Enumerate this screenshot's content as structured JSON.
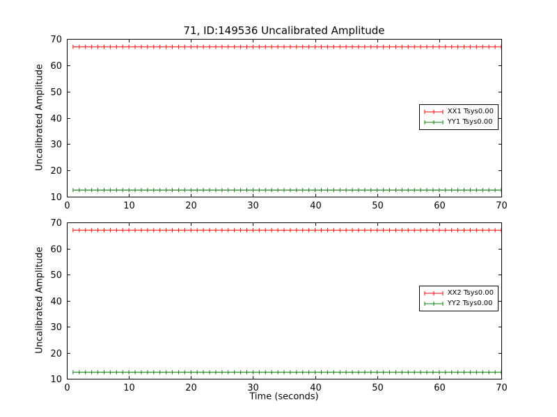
{
  "figure": {
    "title": "71, ID:149536 Uncalibrated Amplitude",
    "background_color": "#ffffff",
    "axes_color": "#000000"
  },
  "chart_data": [
    {
      "type": "line",
      "subplot": "top",
      "title": "",
      "xlabel": "",
      "ylabel": "Uncalibrated Amplitude",
      "xlim": [
        0,
        70
      ],
      "ylim": [
        10,
        70
      ],
      "xticks": [
        0,
        10,
        20,
        30,
        40,
        50,
        60,
        70
      ],
      "yticks": [
        10,
        20,
        30,
        40,
        50,
        60,
        70
      ],
      "grid": false,
      "legend_position": "center right",
      "series": [
        {
          "name": "XX1 Tsys0.00",
          "color": "#ff0000",
          "marker": "errorbar-plus",
          "x_start": 1,
          "x_end": 70,
          "x_step": 1,
          "n_points": 70,
          "y_constant": 67.0
        },
        {
          "name": "YY1 Tsys0.00",
          "color": "#008000",
          "marker": "errorbar-plus",
          "x_start": 1,
          "x_end": 70,
          "x_step": 1,
          "n_points": 70,
          "y_constant": 12.5
        }
      ]
    },
    {
      "type": "line",
      "subplot": "bottom",
      "title": "",
      "xlabel": "Time (seconds)",
      "ylabel": "Uncalibrated Amplitude",
      "xlim": [
        0,
        70
      ],
      "ylim": [
        10,
        70
      ],
      "xticks": [
        0,
        10,
        20,
        30,
        40,
        50,
        60,
        70
      ],
      "yticks": [
        10,
        20,
        30,
        40,
        50,
        60,
        70
      ],
      "grid": false,
      "legend_position": "center right",
      "series": [
        {
          "name": "XX2 Tsys0.00",
          "color": "#ff0000",
          "marker": "errorbar-plus",
          "x_start": 1,
          "x_end": 70,
          "x_step": 1,
          "n_points": 70,
          "y_constant": 67.0
        },
        {
          "name": "YY2 Tsys0.00",
          "color": "#008000",
          "marker": "errorbar-plus",
          "x_start": 1,
          "x_end": 70,
          "x_step": 1,
          "n_points": 70,
          "y_constant": 12.5
        }
      ]
    }
  ]
}
